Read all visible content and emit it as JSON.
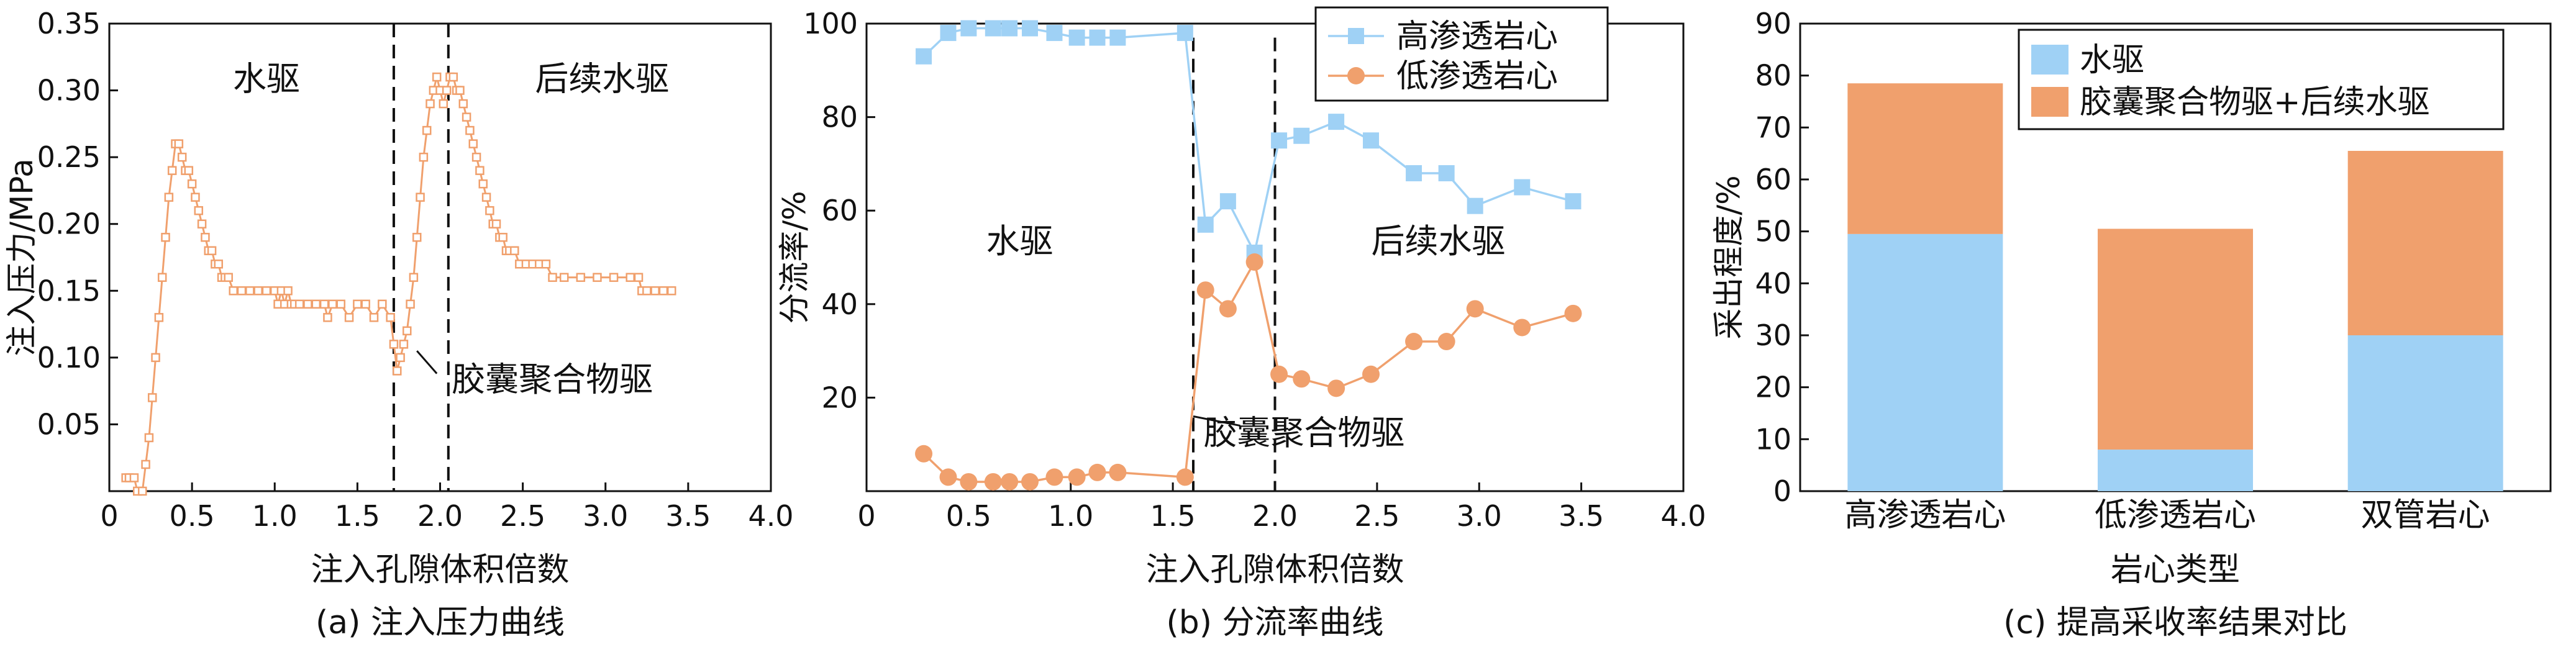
{
  "figure": {
    "colors": {
      "high": "#9fd1f5",
      "low": "#f0a06d",
      "axis": "#111111",
      "water": "#9fd1f5",
      "polymer": "#f0a06d"
    }
  },
  "chart_data": [
    {
      "id": "a",
      "type": "line",
      "caption": "(a) 注入压力曲线",
      "xlabel": "注入孔隙体积倍数",
      "ylabel": "注入压力/MPa",
      "xlim": [
        0,
        4.0
      ],
      "ylim": [
        0,
        0.35
      ],
      "xticks": [
        "0",
        "0.5",
        "1.0",
        "1.5",
        "2.0",
        "2.5",
        "3.0",
        "3.5",
        "4.0"
      ],
      "yticks": [
        "0.05",
        "0.10",
        "0.15",
        "0.20",
        "0.25",
        "0.30",
        "0.35"
      ],
      "annotations": {
        "water_flood": "水驱",
        "post_water_flood": "后续水驱",
        "capsule_polymer": "胶囊聚合物驱"
      },
      "dividers_x": [
        1.72,
        2.05
      ],
      "series": [
        {
          "name": "注入压力",
          "points": [
            [
              0.1,
              0.01
            ],
            [
              0.12,
              0.01
            ],
            [
              0.15,
              0.01
            ],
            [
              0.17,
              0.0
            ],
            [
              0.2,
              0.0
            ],
            [
              0.22,
              0.02
            ],
            [
              0.24,
              0.04
            ],
            [
              0.26,
              0.07
            ],
            [
              0.28,
              0.1
            ],
            [
              0.3,
              0.13
            ],
            [
              0.32,
              0.16
            ],
            [
              0.34,
              0.19
            ],
            [
              0.36,
              0.22
            ],
            [
              0.38,
              0.24
            ],
            [
              0.4,
              0.26
            ],
            [
              0.42,
              0.26
            ],
            [
              0.44,
              0.25
            ],
            [
              0.46,
              0.24
            ],
            [
              0.48,
              0.24
            ],
            [
              0.5,
              0.23
            ],
            [
              0.52,
              0.22
            ],
            [
              0.54,
              0.21
            ],
            [
              0.56,
              0.2
            ],
            [
              0.58,
              0.19
            ],
            [
              0.6,
              0.18
            ],
            [
              0.62,
              0.18
            ],
            [
              0.64,
              0.17
            ],
            [
              0.66,
              0.17
            ],
            [
              0.68,
              0.16
            ],
            [
              0.7,
              0.16
            ],
            [
              0.72,
              0.16
            ],
            [
              0.75,
              0.15
            ],
            [
              0.8,
              0.15
            ],
            [
              0.85,
              0.15
            ],
            [
              0.9,
              0.15
            ],
            [
              0.95,
              0.15
            ],
            [
              1.0,
              0.15
            ],
            [
              1.02,
              0.14
            ],
            [
              1.04,
              0.15
            ],
            [
              1.06,
              0.14
            ],
            [
              1.08,
              0.15
            ],
            [
              1.1,
              0.14
            ],
            [
              1.12,
              0.14
            ],
            [
              1.15,
              0.14
            ],
            [
              1.2,
              0.14
            ],
            [
              1.25,
              0.14
            ],
            [
              1.3,
              0.14
            ],
            [
              1.32,
              0.13
            ],
            [
              1.35,
              0.14
            ],
            [
              1.4,
              0.14
            ],
            [
              1.45,
              0.13
            ],
            [
              1.5,
              0.14
            ],
            [
              1.55,
              0.14
            ],
            [
              1.6,
              0.13
            ],
            [
              1.65,
              0.14
            ],
            [
              1.7,
              0.13
            ],
            [
              1.72,
              0.11
            ],
            [
              1.74,
              0.09
            ],
            [
              1.76,
              0.1
            ],
            [
              1.78,
              0.11
            ],
            [
              1.8,
              0.12
            ],
            [
              1.82,
              0.14
            ],
            [
              1.84,
              0.16
            ],
            [
              1.86,
              0.19
            ],
            [
              1.88,
              0.22
            ],
            [
              1.9,
              0.25
            ],
            [
              1.92,
              0.27
            ],
            [
              1.94,
              0.29
            ],
            [
              1.96,
              0.3
            ],
            [
              1.98,
              0.31
            ],
            [
              2.0,
              0.3
            ],
            [
              2.02,
              0.29
            ],
            [
              2.04,
              0.3
            ],
            [
              2.06,
              0.31
            ],
            [
              2.08,
              0.31
            ],
            [
              2.1,
              0.3
            ],
            [
              2.12,
              0.3
            ],
            [
              2.14,
              0.29
            ],
            [
              2.16,
              0.28
            ],
            [
              2.18,
              0.27
            ],
            [
              2.2,
              0.26
            ],
            [
              2.22,
              0.25
            ],
            [
              2.24,
              0.24
            ],
            [
              2.26,
              0.23
            ],
            [
              2.28,
              0.22
            ],
            [
              2.3,
              0.21
            ],
            [
              2.32,
              0.2
            ],
            [
              2.34,
              0.2
            ],
            [
              2.36,
              0.19
            ],
            [
              2.38,
              0.19
            ],
            [
              2.4,
              0.18
            ],
            [
              2.42,
              0.18
            ],
            [
              2.45,
              0.18
            ],
            [
              2.48,
              0.17
            ],
            [
              2.52,
              0.17
            ],
            [
              2.56,
              0.17
            ],
            [
              2.6,
              0.17
            ],
            [
              2.64,
              0.17
            ],
            [
              2.68,
              0.16
            ],
            [
              2.75,
              0.16
            ],
            [
              2.85,
              0.16
            ],
            [
              2.95,
              0.16
            ],
            [
              3.05,
              0.16
            ],
            [
              3.15,
              0.16
            ],
            [
              3.2,
              0.16
            ],
            [
              3.22,
              0.15
            ],
            [
              3.25,
              0.15
            ],
            [
              3.3,
              0.15
            ],
            [
              3.35,
              0.15
            ],
            [
              3.4,
              0.15
            ]
          ]
        }
      ]
    },
    {
      "id": "b",
      "type": "line",
      "caption": "(b) 分流率曲线",
      "xlabel": "注入孔隙体积倍数",
      "ylabel": "分流率/%",
      "xlim": [
        0,
        4.0
      ],
      "ylim": [
        0,
        100
      ],
      "xticks": [
        "0",
        "0.5",
        "1.0",
        "1.5",
        "2.0",
        "2.5",
        "3.0",
        "3.5",
        "4.0"
      ],
      "yticks": [
        "20",
        "40",
        "60",
        "80",
        "100"
      ],
      "annotations": {
        "water_flood": "水驱",
        "post_water_flood": "后续水驱",
        "capsule_polymer": "胶囊聚合物驱"
      },
      "dividers_x": [
        1.6,
        2.0
      ],
      "legend": [
        "高渗透岩心",
        "低渗透岩心"
      ],
      "series": [
        {
          "name": "高渗透岩心",
          "points": [
            [
              0.28,
              93
            ],
            [
              0.4,
              98
            ],
            [
              0.5,
              99
            ],
            [
              0.62,
              99
            ],
            [
              0.7,
              99
            ],
            [
              0.8,
              99
            ],
            [
              0.92,
              98
            ],
            [
              1.03,
              97
            ],
            [
              1.13,
              97
            ],
            [
              1.23,
              97
            ],
            [
              1.56,
              98
            ],
            [
              1.66,
              57
            ],
            [
              1.77,
              62
            ],
            [
              1.9,
              51
            ],
            [
              2.02,
              75
            ],
            [
              2.13,
              76
            ],
            [
              2.3,
              79
            ],
            [
              2.47,
              75
            ],
            [
              2.68,
              68
            ],
            [
              2.84,
              68
            ],
            [
              2.98,
              61
            ],
            [
              3.21,
              65
            ],
            [
              3.46,
              62
            ]
          ]
        },
        {
          "name": "低渗透岩心",
          "points": [
            [
              0.28,
              8
            ],
            [
              0.4,
              3
            ],
            [
              0.5,
              2
            ],
            [
              0.62,
              2
            ],
            [
              0.7,
              2
            ],
            [
              0.8,
              2
            ],
            [
              0.92,
              3
            ],
            [
              1.03,
              3
            ],
            [
              1.13,
              4
            ],
            [
              1.23,
              4
            ],
            [
              1.56,
              3
            ],
            [
              1.66,
              43
            ],
            [
              1.77,
              39
            ],
            [
              1.9,
              49
            ],
            [
              2.02,
              25
            ],
            [
              2.13,
              24
            ],
            [
              2.3,
              22
            ],
            [
              2.47,
              25
            ],
            [
              2.68,
              32
            ],
            [
              2.84,
              32
            ],
            [
              2.98,
              39
            ],
            [
              3.21,
              35
            ],
            [
              3.46,
              38
            ]
          ]
        }
      ]
    },
    {
      "id": "c",
      "type": "bar",
      "stacked": true,
      "caption": "(c) 提高采收率结果对比",
      "xlabel": "岩心类型",
      "ylabel": "采出程度/%",
      "ylim": [
        0,
        90
      ],
      "yticks": [
        "0",
        "10",
        "20",
        "30",
        "40",
        "50",
        "60",
        "70",
        "80",
        "90"
      ],
      "categories": [
        "高渗透岩心",
        "低渗透岩心",
        "双管岩心"
      ],
      "legend": [
        "水驱",
        "胶囊聚合物驱+后续水驱"
      ],
      "series": [
        {
          "name": "水驱",
          "values": [
            49.5,
            8.0,
            30.0
          ]
        },
        {
          "name": "胶囊聚合物驱+后续水驱",
          "values": [
            29.0,
            42.5,
            35.5
          ]
        }
      ]
    }
  ]
}
